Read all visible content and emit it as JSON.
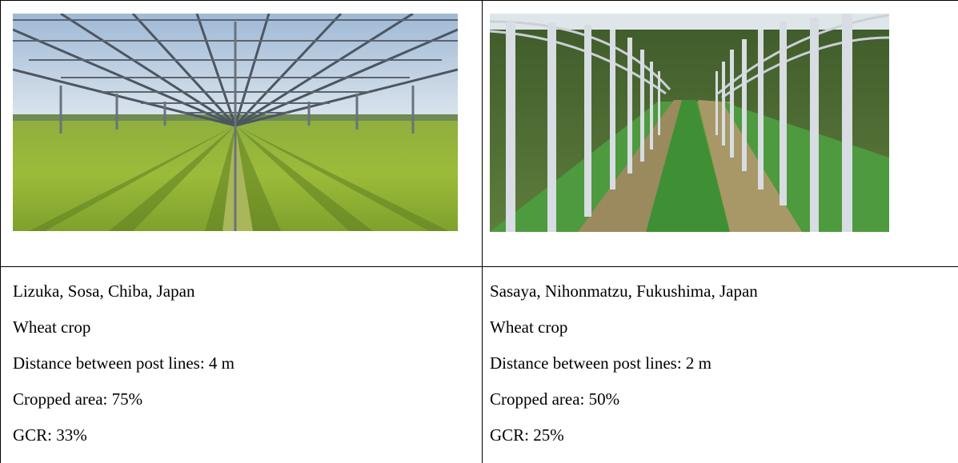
{
  "sites": [
    {
      "photo": "agrivoltaic-wheat-field-photo",
      "location": " Lizuka, Sosa, Chiba, Japan",
      "crop": "Wheat crop",
      "distance": "Distance between post lines: 4 m",
      "cropped_area": "Cropped area: 75%",
      "gcr": "GCR: 33%"
    },
    {
      "photo": "agrivoltaic-wheat-rows-photo",
      "location": "Sasaya, Nihonmatzu, Fukushima, Japan",
      "crop": "Wheat crop",
      "distance": "Distance between post lines: 2 m",
      "cropped_area": "Cropped area: 50%",
      "gcr": "GCR: 25%"
    }
  ]
}
